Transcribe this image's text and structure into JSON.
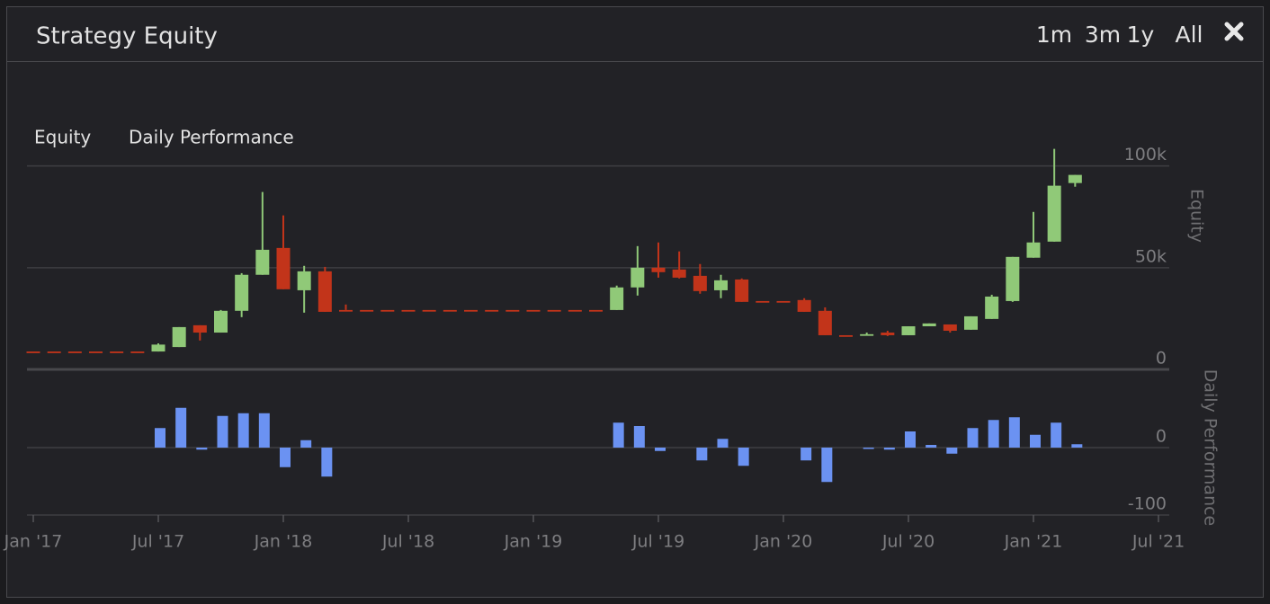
{
  "header": {
    "title": "Strategy Equity",
    "ranges": [
      "1m",
      "3m",
      "1y",
      "All"
    ]
  },
  "chart_data": [
    {
      "type": "candlestick",
      "name": "Equity",
      "ylabel": "Equity",
      "x": [
        "2017-01",
        "2017-02",
        "2017-03",
        "2017-04",
        "2017-05",
        "2017-06",
        "2017-07",
        "2017-08",
        "2017-09",
        "2017-10",
        "2017-11",
        "2017-12",
        "2018-01",
        "2018-02",
        "2018-03",
        "2018-04",
        "2018-05",
        "2018-06",
        "2018-07",
        "2018-08",
        "2018-09",
        "2018-10",
        "2018-11",
        "2018-12",
        "2019-01",
        "2019-02",
        "2019-03",
        "2019-04",
        "2019-05",
        "2019-06",
        "2019-07",
        "2019-08",
        "2019-09",
        "2019-10",
        "2019-11",
        "2019-12",
        "2020-01",
        "2020-02",
        "2020-03",
        "2020-04",
        "2020-05",
        "2020-06",
        "2020-07",
        "2020-08",
        "2020-09",
        "2020-10",
        "2020-11",
        "2020-12",
        "2021-01",
        "2021-02",
        "2021-03"
      ],
      "open": [
        8800,
        8800,
        8800,
        8800,
        8800,
        8800,
        8800,
        11000,
        21700,
        18100,
        28800,
        46500,
        59700,
        38900,
        48200,
        29200,
        29200,
        29200,
        29200,
        29200,
        29200,
        29200,
        29200,
        29200,
        29200,
        29200,
        29200,
        29200,
        29200,
        40300,
        50000,
        49100,
        46000,
        38900,
        44200,
        33600,
        33600,
        34100,
        28800,
        16800,
        16800,
        18100,
        16800,
        21200,
        22100,
        19500,
        24800,
        33600,
        54900,
        62800,
        91600
      ],
      "high": [
        8800,
        8800,
        8800,
        8800,
        8800,
        8800,
        12800,
        20800,
        21700,
        29200,
        47300,
        87200,
        75700,
        50900,
        50400,
        31900,
        29200,
        29200,
        29200,
        29200,
        29200,
        29200,
        29200,
        29200,
        29200,
        29200,
        29200,
        29200,
        41200,
        60600,
        62400,
        58000,
        51800,
        46500,
        44700,
        33600,
        33600,
        35000,
        30500,
        16800,
        18100,
        19000,
        21200,
        22600,
        22100,
        26100,
        36700,
        55300,
        77400,
        108400,
        95600
      ],
      "low": [
        8800,
        8800,
        8800,
        8800,
        8800,
        8800,
        8800,
        11000,
        14200,
        18100,
        25700,
        46500,
        39400,
        27900,
        28300,
        29200,
        29200,
        29200,
        29200,
        29200,
        29200,
        29200,
        29200,
        29200,
        29200,
        29200,
        29200,
        29200,
        29200,
        36300,
        45100,
        44700,
        37200,
        35000,
        33200,
        33600,
        33600,
        28300,
        16800,
        16800,
        16800,
        16400,
        16800,
        21200,
        18100,
        19500,
        24800,
        33200,
        54900,
        62800,
        89800
      ],
      "close": [
        8800,
        8800,
        8800,
        8800,
        8800,
        8800,
        12200,
        20800,
        18100,
        28800,
        46500,
        58800,
        39400,
        48200,
        28300,
        29200,
        29200,
        29200,
        29200,
        29200,
        29200,
        29200,
        29200,
        29200,
        29200,
        29200,
        29200,
        29200,
        40300,
        50000,
        47800,
        45100,
        38500,
        43800,
        33200,
        33600,
        33600,
        28300,
        16800,
        16800,
        17300,
        16800,
        21200,
        22600,
        19000,
        26100,
        35800,
        55300,
        62400,
        90300,
        95600
      ],
      "up_color": "#90c978",
      "down_color": "#c2341a",
      "xlim": [
        "2017-01",
        "2021-07"
      ],
      "ylim": [
        0,
        110000
      ],
      "yticks": [
        0,
        {
          "value": 50000,
          "label": "50k"
        },
        {
          "value": 100000,
          "label": "100k"
        }
      ]
    },
    {
      "type": "bar",
      "name": "Daily Performance",
      "ylabel": "Daily Performance",
      "x": [
        "2017-01",
        "2017-02",
        "2017-03",
        "2017-04",
        "2017-05",
        "2017-06",
        "2017-07",
        "2017-08",
        "2017-09",
        "2017-10",
        "2017-11",
        "2017-12",
        "2018-01",
        "2018-02",
        "2018-03",
        "2018-04",
        "2018-05",
        "2018-06",
        "2018-07",
        "2018-08",
        "2018-09",
        "2018-10",
        "2018-11",
        "2018-12",
        "2019-01",
        "2019-02",
        "2019-03",
        "2019-04",
        "2019-05",
        "2019-06",
        "2019-07",
        "2019-08",
        "2019-09",
        "2019-10",
        "2019-11",
        "2019-12",
        "2020-01",
        "2020-02",
        "2020-03",
        "2020-04",
        "2020-05",
        "2020-06",
        "2020-07",
        "2020-08",
        "2020-09",
        "2020-10",
        "2020-11",
        "2020-12",
        "2021-01",
        "2021-02",
        "2021-03"
      ],
      "values": [
        null,
        null,
        null,
        null,
        null,
        null,
        29,
        59,
        -3,
        47,
        51,
        51,
        -29,
        11,
        -43,
        null,
        null,
        null,
        null,
        null,
        null,
        null,
        null,
        null,
        null,
        null,
        null,
        null,
        37,
        32,
        -5,
        null,
        -19,
        13,
        -27,
        null,
        null,
        -19,
        -51,
        null,
        -1,
        -3,
        24,
        4,
        -9,
        29,
        41,
        45,
        19,
        37,
        5
      ],
      "color": "#6b92f2",
      "xlim": [
        "2017-01",
        "2021-07"
      ],
      "ylim": [
        -100,
        100
      ],
      "yticks": [
        -100,
        0
      ],
      "xticks": [
        {
          "value": "2017-01",
          "label": "Jan '17"
        },
        {
          "value": "2017-07",
          "label": "Jul '17"
        },
        {
          "value": "2018-01",
          "label": "Jan '18"
        },
        {
          "value": "2018-07",
          "label": "Jul '18"
        },
        {
          "value": "2019-01",
          "label": "Jan '19"
        },
        {
          "value": "2019-07",
          "label": "Jul '19"
        },
        {
          "value": "2020-01",
          "label": "Jan '20"
        },
        {
          "value": "2020-07",
          "label": "Jul '20"
        },
        {
          "value": "2021-01",
          "label": "Jan '21"
        },
        {
          "value": "2021-07",
          "label": "Jul '21"
        }
      ]
    }
  ]
}
